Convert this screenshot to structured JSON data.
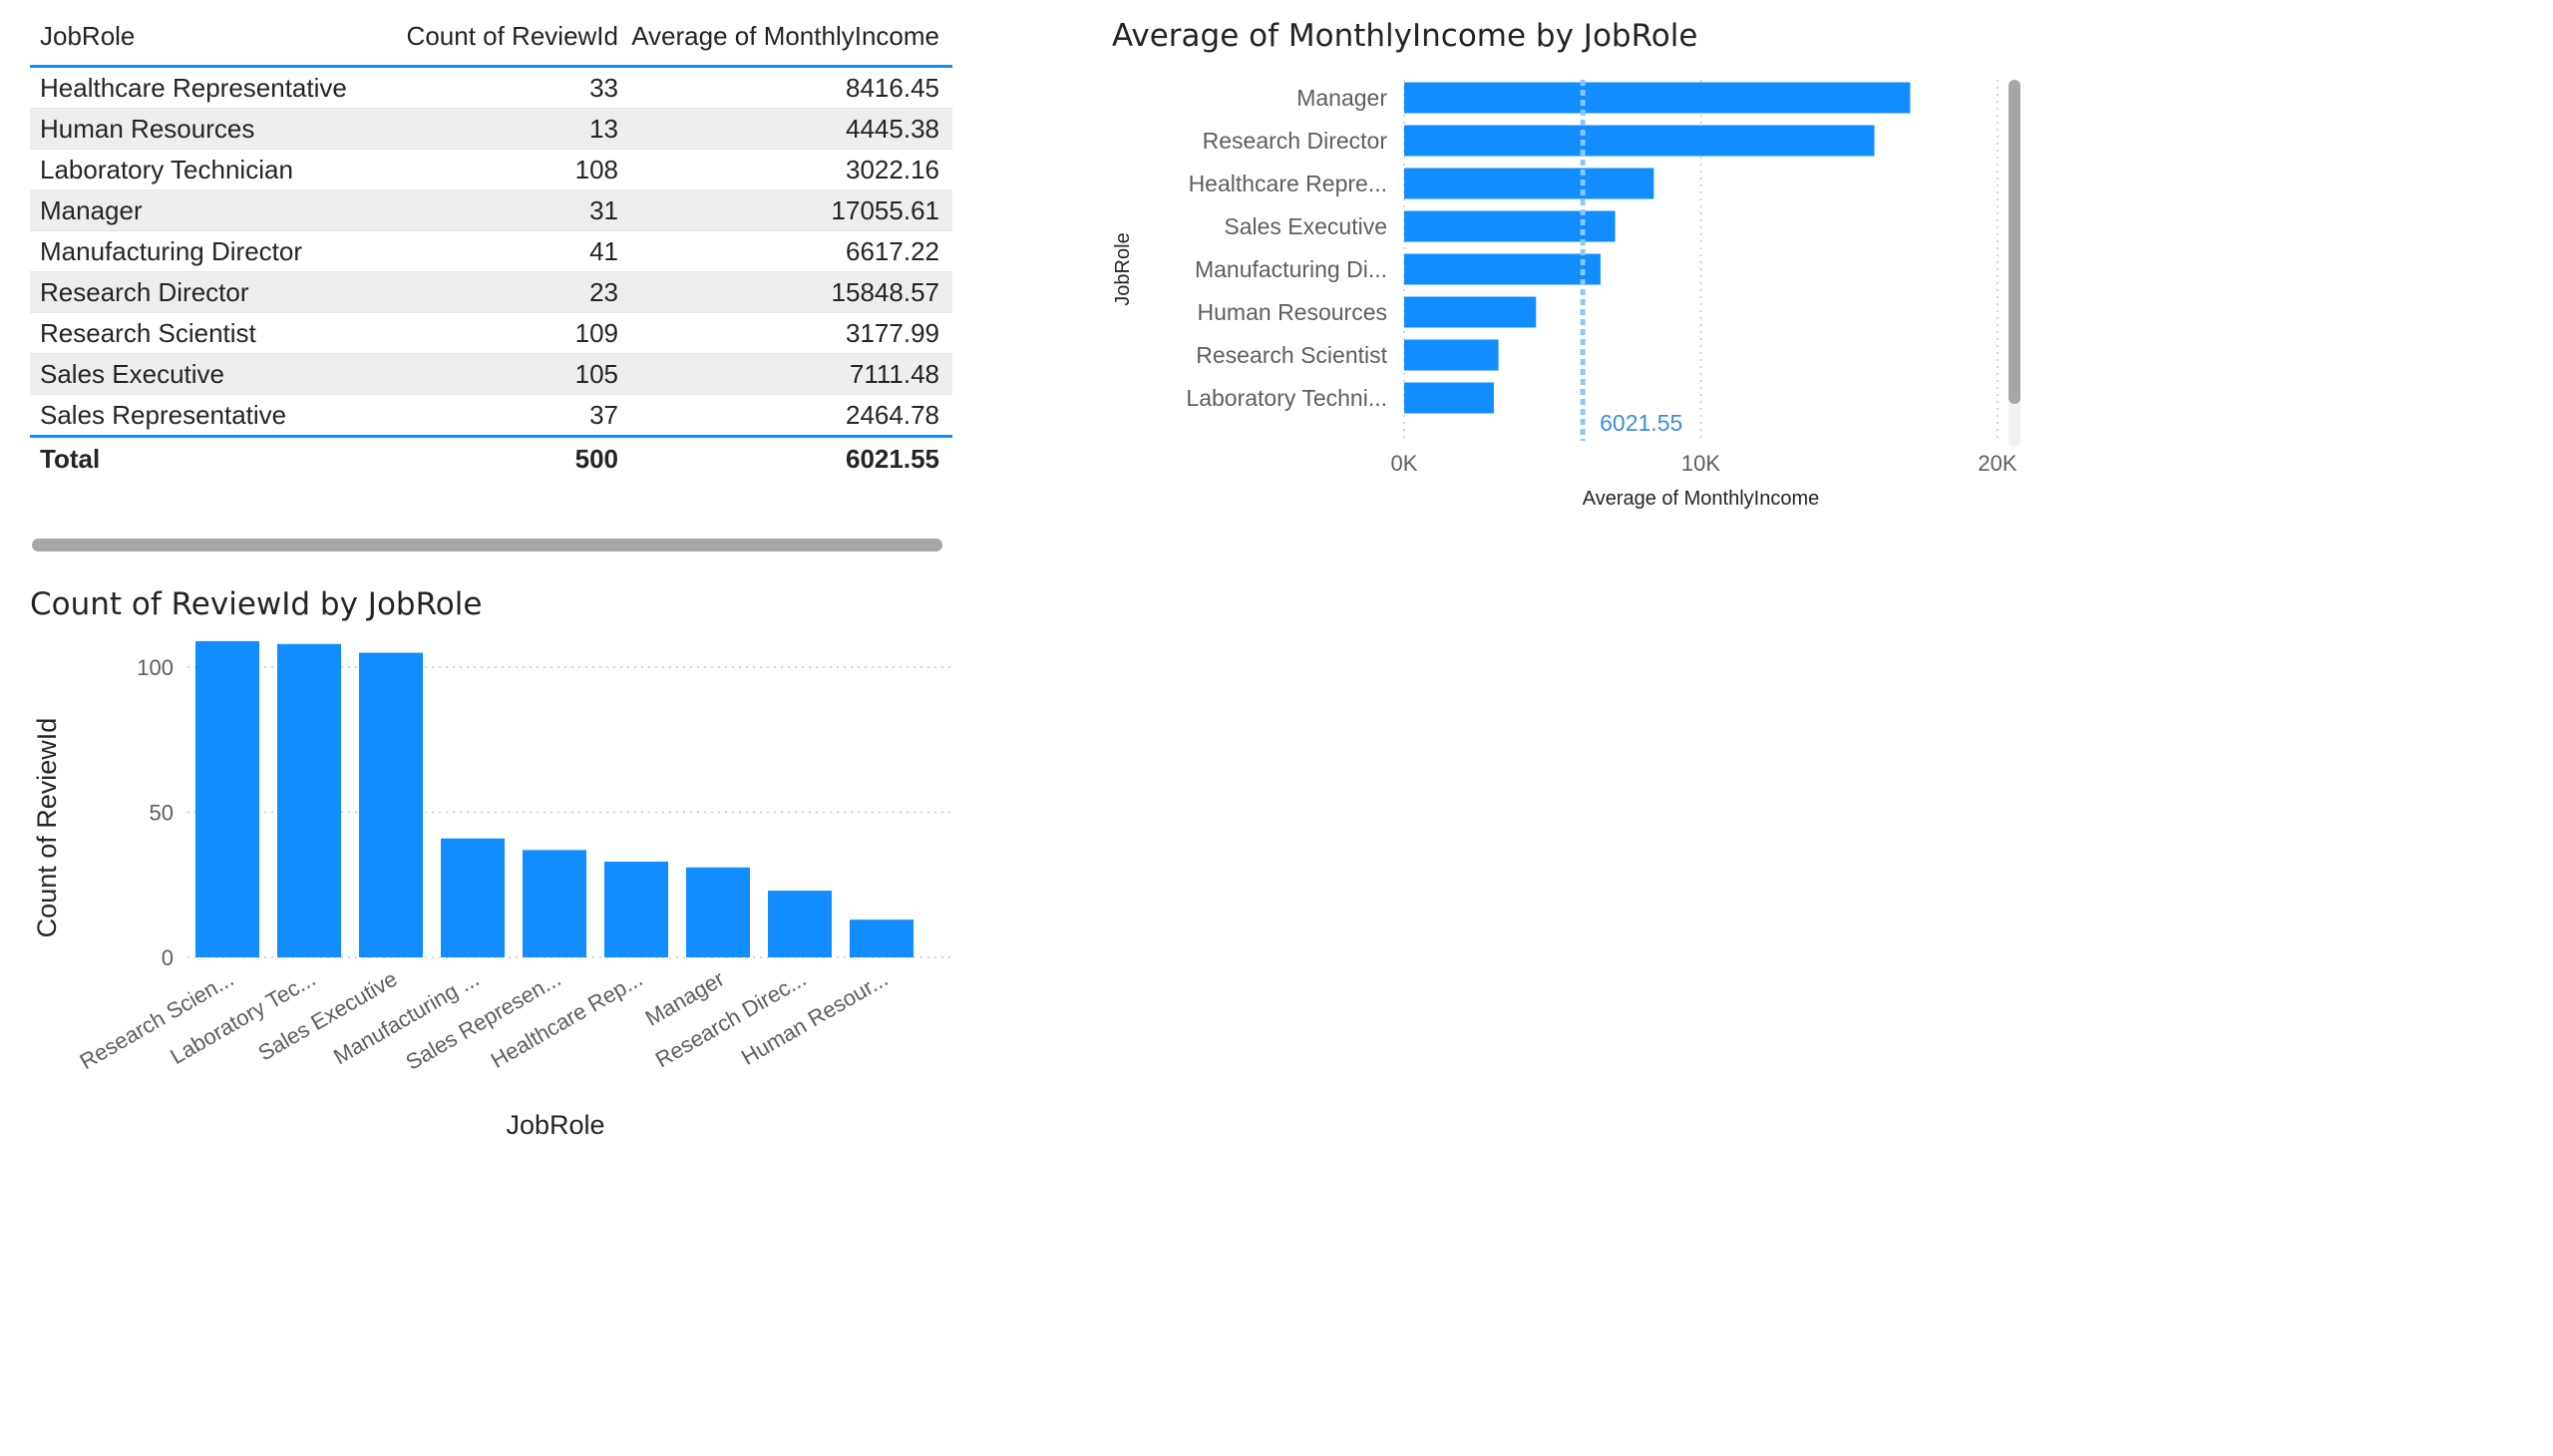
{
  "table": {
    "headers": [
      "JobRole",
      "Count of ReviewId",
      "Average of MonthlyIncome"
    ],
    "rows": [
      {
        "role": "Healthcare Representative",
        "count": "33",
        "avg": "8416.45"
      },
      {
        "role": "Human Resources",
        "count": "13",
        "avg": "4445.38"
      },
      {
        "role": "Laboratory Technician",
        "count": "108",
        "avg": "3022.16"
      },
      {
        "role": "Manager",
        "count": "31",
        "avg": "17055.61"
      },
      {
        "role": "Manufacturing Director",
        "count": "41",
        "avg": "6617.22"
      },
      {
        "role": "Research Director",
        "count": "23",
        "avg": "15848.57"
      },
      {
        "role": "Research Scientist",
        "count": "109",
        "avg": "3177.99"
      },
      {
        "role": "Sales Executive",
        "count": "105",
        "avg": "7111.48"
      },
      {
        "role": "Sales Representative",
        "count": "37",
        "avg": "2464.78"
      }
    ],
    "total": {
      "label": "Total",
      "count": "500",
      "avg": "6021.55"
    }
  },
  "colors": {
    "accent": "#118DFF",
    "average_line": "#8CC8FF",
    "scrollbar": "#A6A6A6"
  },
  "chart_data": [
    {
      "type": "bar",
      "orientation": "horizontal",
      "title": "Average of MonthlyIncome by JobRole",
      "xlabel": "Average of MonthlyIncome",
      "ylabel": "JobRole",
      "categories": [
        "Manager",
        "Research Director",
        "Healthcare Repre...",
        "Sales Executive",
        "Manufacturing Di...",
        "Human Resources",
        "Research Scientist",
        "Laboratory Techni..."
      ],
      "values": [
        17055.61,
        15848.57,
        8416.45,
        7111.48,
        6617.22,
        4445.38,
        3177.99,
        3022.16
      ],
      "xlim": [
        0,
        20000
      ],
      "xticks": [
        0,
        10000,
        20000
      ],
      "xtick_labels": [
        "0K",
        "10K",
        "20K"
      ],
      "average_line": {
        "value": 6021.55,
        "label": "6021.55"
      },
      "grid": true,
      "vertical_scrollbar": true
    },
    {
      "type": "bar",
      "orientation": "vertical",
      "title": "Count of ReviewId by JobRole",
      "xlabel": "JobRole",
      "ylabel": "Count of ReviewId",
      "categories": [
        "Research Scien...",
        "Laboratory Tec...",
        "Sales Executive",
        "Manufacturing ...",
        "Sales Represen...",
        "Healthcare Rep...",
        "Manager",
        "Research Direc...",
        "Human Resour..."
      ],
      "values": [
        109,
        108,
        105,
        41,
        37,
        33,
        31,
        23,
        13
      ],
      "ylim": [
        0,
        110
      ],
      "yticks": [
        0,
        50,
        100
      ],
      "grid": true
    }
  ]
}
